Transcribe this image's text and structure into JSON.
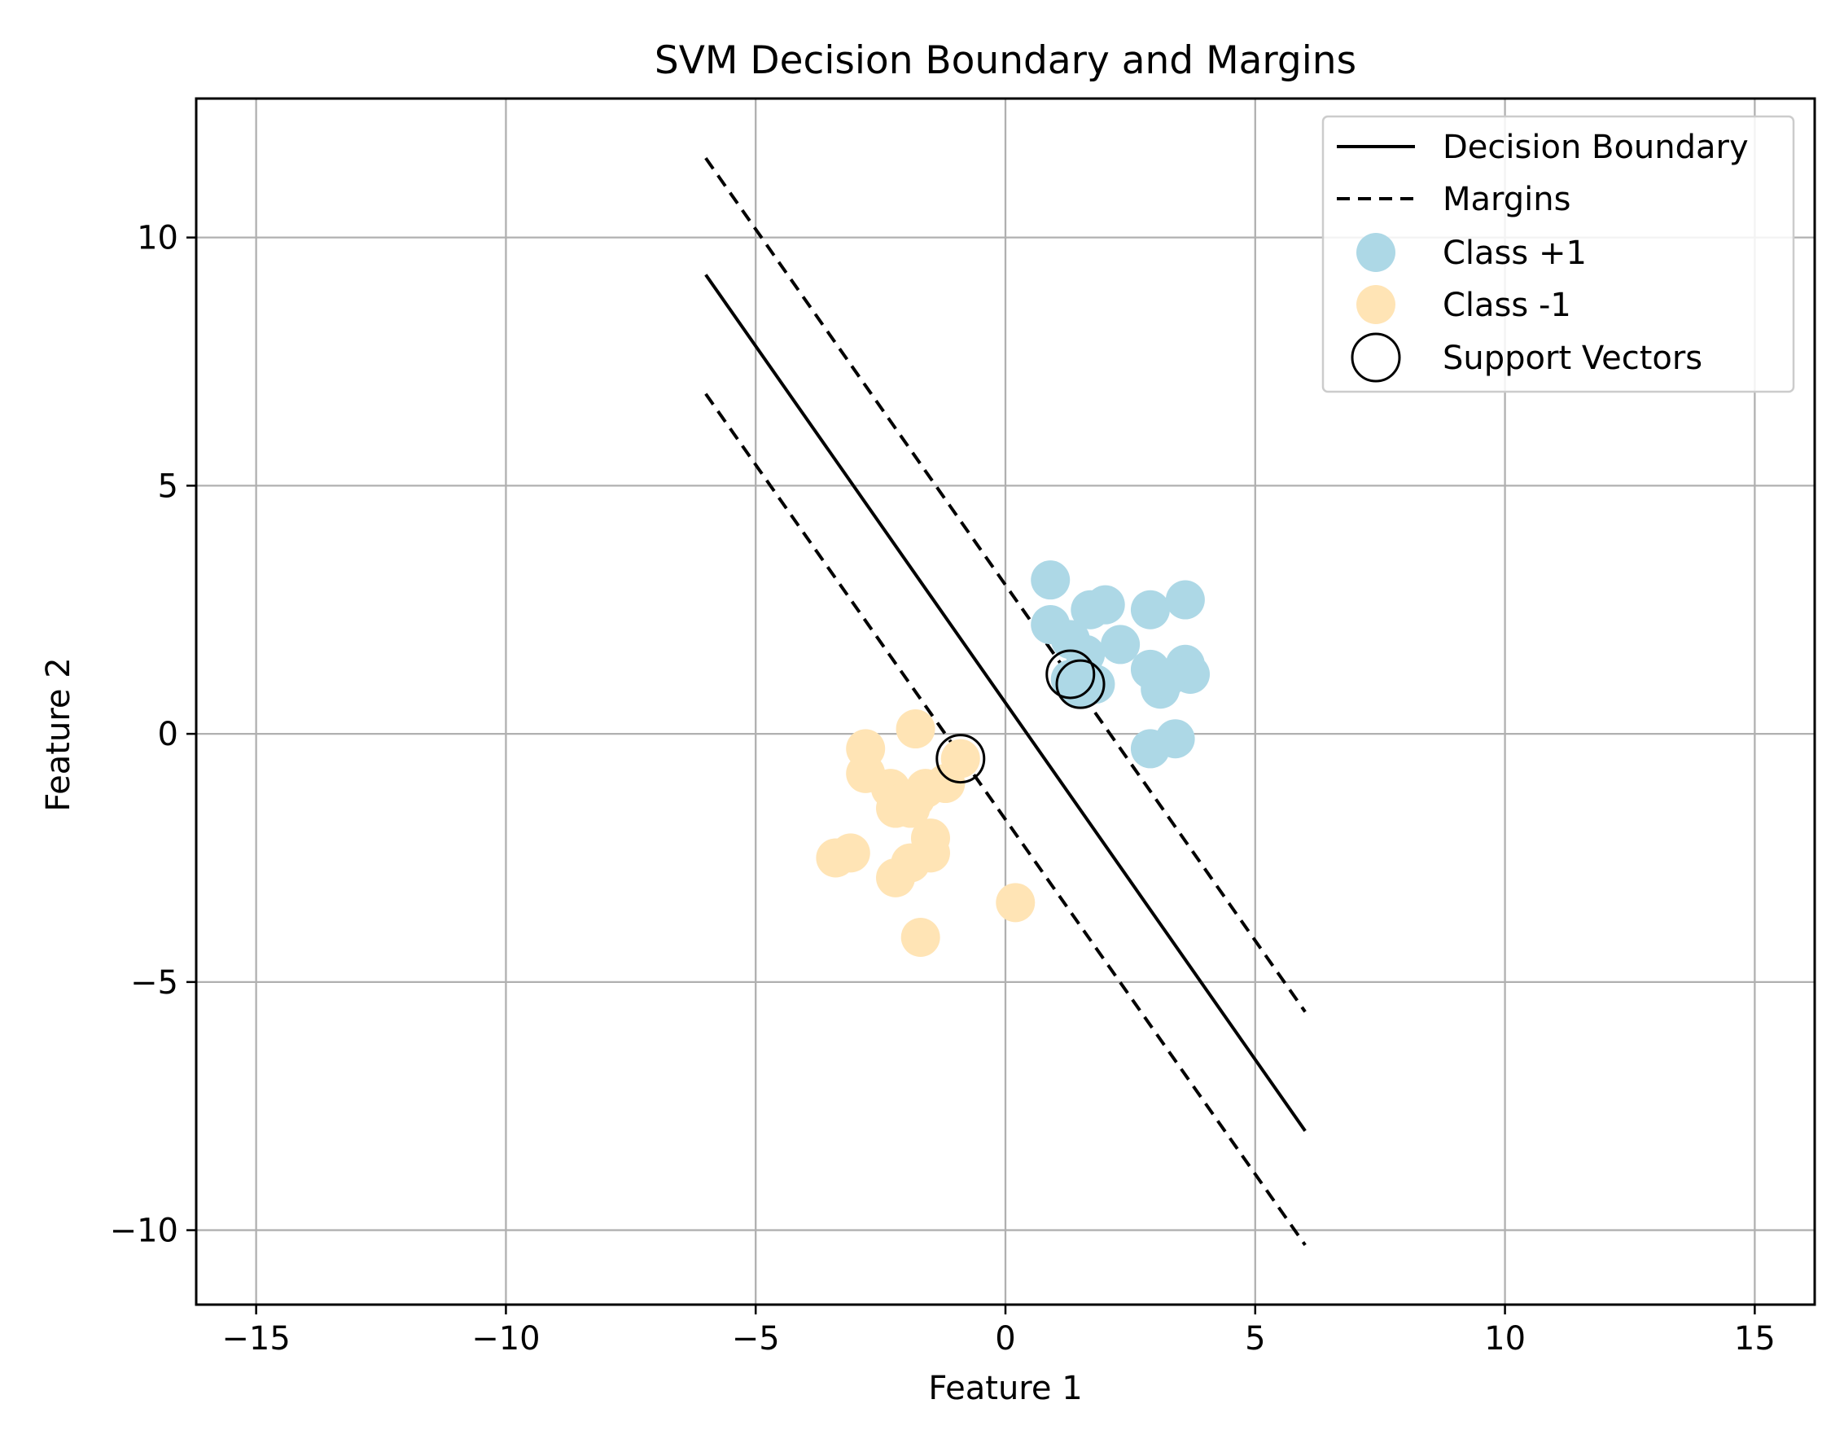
{
  "chart_data": {
    "type": "scatter",
    "title": "SVM Decision Boundary and Margins",
    "xlabel": "Feature 1",
    "ylabel": "Feature 2",
    "xlim": [
      -16.2,
      16.2
    ],
    "ylim": [
      -11.5,
      12.8
    ],
    "xticks": [
      -15,
      -10,
      -5,
      0,
      5,
      10,
      15
    ],
    "xtick_labels": [
      "−15",
      "−10",
      "−5",
      "0",
      "5",
      "10",
      "15"
    ],
    "yticks": [
      -10,
      -5,
      0,
      5,
      10
    ],
    "ytick_labels": [
      "−10",
      "−5",
      "0",
      "5",
      "10"
    ],
    "grid": true,
    "legend_position": "top-right",
    "lines": [
      {
        "name": "Decision Boundary",
        "style": "solid",
        "color": "#000000",
        "x": [
          -6,
          6
        ],
        "y": [
          9.25,
          -8.0
        ]
      },
      {
        "name": "Margins",
        "style": "dashed",
        "color": "#000000",
        "x": [
          -6,
          6
        ],
        "y": [
          11.6,
          -5.6
        ]
      },
      {
        "name": "Margins",
        "style": "dashed",
        "color": "#000000",
        "x": [
          -6,
          6
        ],
        "y": [
          6.85,
          -10.3
        ]
      }
    ],
    "series": [
      {
        "name": "Class +1",
        "color": "#add8e6",
        "points": [
          [
            0.9,
            3.1
          ],
          [
            1.7,
            2.5
          ],
          [
            2.0,
            2.6
          ],
          [
            2.9,
            2.5
          ],
          [
            3.6,
            2.7
          ],
          [
            0.9,
            2.2
          ],
          [
            1.3,
            1.9
          ],
          [
            1.6,
            1.6
          ],
          [
            2.3,
            1.8
          ],
          [
            2.9,
            1.3
          ],
          [
            3.6,
            1.4
          ],
          [
            3.7,
            1.2
          ],
          [
            3.1,
            0.9
          ],
          [
            1.8,
            1.0
          ],
          [
            1.3,
            1.1
          ],
          [
            1.5,
            0.9
          ],
          [
            2.9,
            -0.3
          ],
          [
            3.4,
            -0.1
          ],
          [
            3.2,
            1.1
          ]
        ]
      },
      {
        "name": "Class -1",
        "color": "#ffe4b5",
        "points": [
          [
            -1.8,
            0.1
          ],
          [
            -2.8,
            -0.3
          ],
          [
            -2.8,
            -0.8
          ],
          [
            -2.3,
            -1.1
          ],
          [
            -2.1,
            -1.4
          ],
          [
            -1.8,
            -1.3
          ],
          [
            -1.6,
            -1.1
          ],
          [
            -1.2,
            -1.0
          ],
          [
            -0.9,
            -0.5
          ],
          [
            -2.2,
            -1.5
          ],
          [
            -1.5,
            -2.1
          ],
          [
            -1.5,
            -2.4
          ],
          [
            -1.9,
            -2.6
          ],
          [
            -2.2,
            -2.9
          ],
          [
            -3.4,
            -2.5
          ],
          [
            -3.1,
            -2.4
          ],
          [
            -1.7,
            -4.1
          ],
          [
            0.2,
            -3.4
          ],
          [
            -1.9,
            -1.5
          ]
        ]
      }
    ],
    "support_vectors": {
      "name": "Support Vectors",
      "points": [
        [
          1.3,
          1.2
        ],
        [
          1.5,
          1.0
        ],
        [
          -0.9,
          -0.5
        ]
      ]
    },
    "legend": [
      {
        "label": "Decision Boundary",
        "kind": "solid-line"
      },
      {
        "label": "Margins",
        "kind": "dashed-line"
      },
      {
        "label": "Class +1",
        "kind": "filled-circle",
        "color": "#add8e6"
      },
      {
        "label": "Class -1",
        "kind": "filled-circle",
        "color": "#ffe4b5"
      },
      {
        "label": "Support Vectors",
        "kind": "open-circle"
      }
    ]
  }
}
